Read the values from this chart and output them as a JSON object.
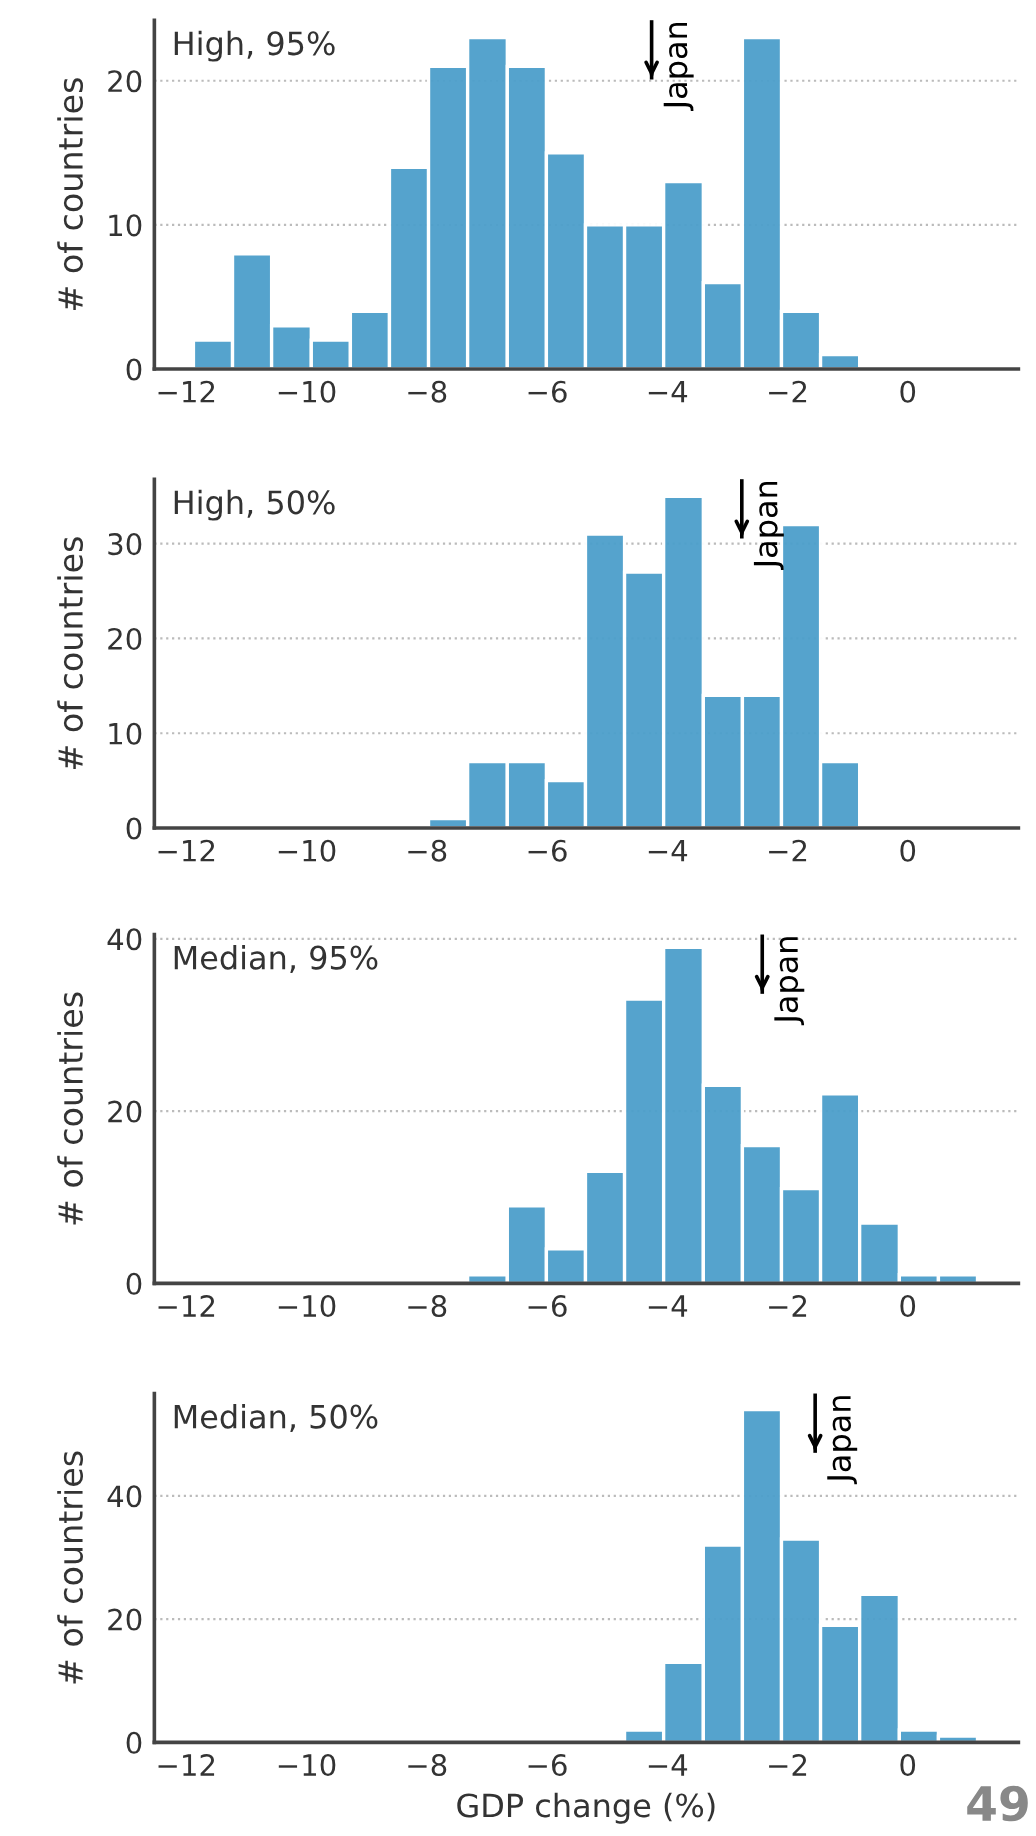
{
  "chart_data": [
    {
      "type": "histogram",
      "title": "High, 95%",
      "ylabel": "# of countries",
      "color": "#4c9fcb",
      "bins": [
        -11.88,
        -11.23,
        -10.58,
        -9.92,
        -9.27,
        -8.62,
        -7.97,
        -7.32,
        -6.66,
        -6.01,
        -5.36,
        -4.71,
        -4.06,
        -3.4,
        -2.75,
        -2.1,
        -1.45,
        -0.8
      ],
      "values": [
        2,
        8,
        3,
        2,
        4,
        14,
        21,
        23,
        21,
        15,
        10,
        10,
        13,
        6,
        23,
        4,
        1
      ],
      "xlim": [
        -12.53,
        1.84
      ],
      "xticks": [
        -12,
        -10,
        -8,
        -6,
        -4,
        -2,
        0
      ],
      "ylim": [
        0,
        24.2
      ],
      "yticks": [
        0,
        10,
        20
      ],
      "grid": "y",
      "tick_labels": true,
      "ref_lines": [
        {
          "axis": "x",
          "value": -4.26,
          "label": "Japan"
        }
      ]
    },
    {
      "type": "histogram",
      "title": "High, 50%",
      "ylabel": "# of countries",
      "color": "#4c9fcb",
      "bins": [
        -7.97,
        -7.32,
        -6.66,
        -6.01,
        -5.36,
        -4.71,
        -4.06,
        -3.4,
        -2.75,
        -2.1,
        -1.45,
        -0.8
      ],
      "values": [
        1,
        7,
        7,
        5,
        31,
        27,
        35,
        14,
        14,
        32,
        7
      ],
      "xlim": [
        -12.53,
        1.84
      ],
      "xticks": [
        -12,
        -10,
        -8,
        -6,
        -4,
        -2,
        0
      ],
      "ylim": [
        0,
        36.8
      ],
      "yticks": [
        0,
        10,
        20,
        30
      ],
      "grid": "y",
      "tick_labels": true,
      "ref_lines": [
        {
          "axis": "x",
          "value": -2.76,
          "label": "Japan"
        }
      ]
    },
    {
      "type": "histogram",
      "title": "Median, 95%",
      "ylabel": "# of countries",
      "color": "#4c9fcb",
      "bins": [
        -7.32,
        -6.66,
        -6.01,
        -5.36,
        -4.71,
        -4.06,
        -3.4,
        -2.75,
        -2.1,
        -1.45,
        -0.8,
        -0.14,
        0.51,
        1.16
      ],
      "values": [
        1,
        9,
        4,
        13,
        33,
        39,
        23,
        16,
        11,
        22,
        7,
        1,
        1
      ],
      "xlim": [
        -12.53,
        1.84
      ],
      "xticks": [
        -12,
        -10,
        -8,
        -6,
        -4,
        -2,
        0
      ],
      "ylim": [
        0,
        40.5
      ],
      "yticks": [
        0,
        20,
        40
      ],
      "grid": "y",
      "tick_labels": true,
      "ref_lines": [
        {
          "axis": "x",
          "value": -2.42,
          "label": "Japan"
        }
      ]
    },
    {
      "type": "histogram",
      "title": "Median, 50%",
      "ylabel": "# of countries",
      "xlabel": "GDP change (%)",
      "color": "#4c9fcb",
      "bins": [
        -4.71,
        -4.06,
        -3.4,
        -2.75,
        -2.1,
        -1.45,
        -0.8,
        -0.14,
        0.51,
        1.16
      ],
      "values": [
        2,
        13,
        32,
        54,
        33,
        19,
        24,
        2,
        1
      ],
      "xlim": [
        -12.53,
        1.84
      ],
      "xticks": [
        -12,
        -10,
        -8,
        -6,
        -4,
        -2,
        0
      ],
      "ylim": [
        0,
        56.6
      ],
      "yticks": [
        0,
        20,
        40
      ],
      "grid": "y",
      "tick_labels": true,
      "ref_lines": [
        {
          "axis": "x",
          "value": -1.54,
          "label": "Japan"
        }
      ],
      "annotations": [
        "49"
      ]
    }
  ]
}
